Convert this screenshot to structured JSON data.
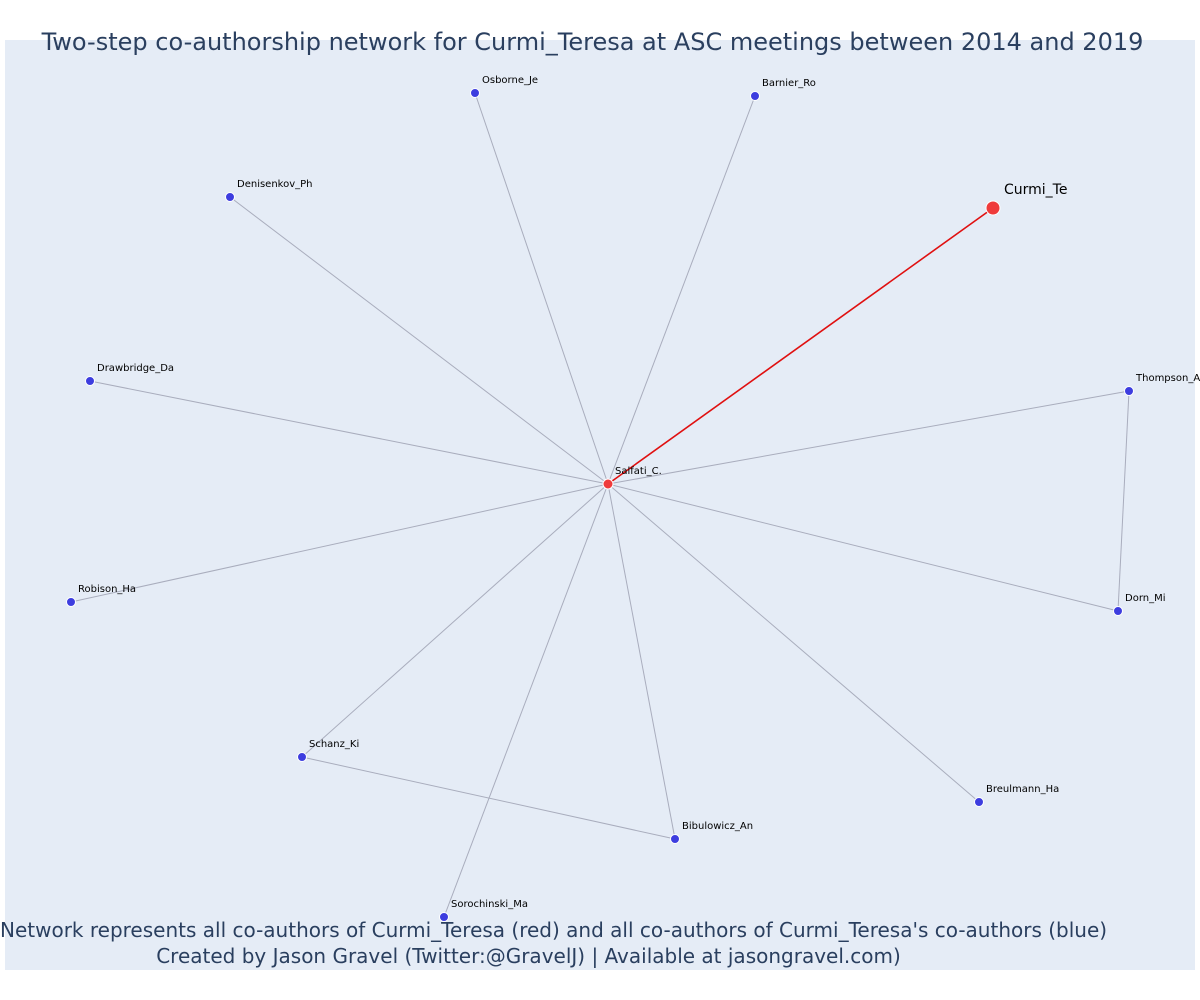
{
  "title": "Two-step co-authorship network for Curmi_Teresa at ASC meetings between 2014 and 2019",
  "caption": {
    "line1": "Network represents all co-authors of Curmi_Teresa (red) and all co-authors of Curmi_Teresa's co-authors (blue)",
    "line2": "Created by Jason Gravel (Twitter:@GravelJ) | Available at jasongravel.com)"
  },
  "colors": {
    "background": "#e5ecf6",
    "red_node": "#ef3b3b",
    "blue_node": "#3d3ddf",
    "red_edge": "#e01010",
    "grey_edge": "#a9adbd"
  },
  "network": {
    "nodes": [
      {
        "id": "Curmi_Te",
        "label": "Curmi_Te",
        "group": "focus"
      },
      {
        "id": "Salfati_C.",
        "label": "Salfati_C.",
        "group": "coauthor"
      },
      {
        "id": "Osborne_Je",
        "label": "Osborne_Je",
        "group": "second"
      },
      {
        "id": "Barnier_Ro",
        "label": "Barnier_Ro",
        "group": "second"
      },
      {
        "id": "Denisenkov_Ph",
        "label": "Denisenkov_Ph",
        "group": "second"
      },
      {
        "id": "Drawbridge_Da",
        "label": "Drawbridge_Da",
        "group": "second"
      },
      {
        "id": "Thompson_A",
        "label": "Thompson_A",
        "group": "second"
      },
      {
        "id": "Robison_Ha",
        "label": "Robison_Ha",
        "group": "second"
      },
      {
        "id": "Dorn_Mi",
        "label": "Dorn_Mi",
        "group": "second"
      },
      {
        "id": "Schanz_Ki",
        "label": "Schanz_Ki",
        "group": "second"
      },
      {
        "id": "Breulmann_Ha",
        "label": "Breulmann_Ha",
        "group": "second"
      },
      {
        "id": "Bibulowicz_An",
        "label": "Bibulowicz_An",
        "group": "second"
      },
      {
        "id": "Sorochinski_Ma",
        "label": "Sorochinski_Ma",
        "group": "second"
      }
    ],
    "edges": [
      {
        "source": "Salfati_C.",
        "target": "Curmi_Te",
        "type": "focus"
      },
      {
        "source": "Salfati_C.",
        "target": "Osborne_Je",
        "type": "second"
      },
      {
        "source": "Salfati_C.",
        "target": "Barnier_Ro",
        "type": "second"
      },
      {
        "source": "Salfati_C.",
        "target": "Denisenkov_Ph",
        "type": "second"
      },
      {
        "source": "Salfati_C.",
        "target": "Drawbridge_Da",
        "type": "second"
      },
      {
        "source": "Salfati_C.",
        "target": "Thompson_A",
        "type": "second"
      },
      {
        "source": "Salfati_C.",
        "target": "Robison_Ha",
        "type": "second"
      },
      {
        "source": "Salfati_C.",
        "target": "Dorn_Mi",
        "type": "second"
      },
      {
        "source": "Salfati_C.",
        "target": "Schanz_Ki",
        "type": "second"
      },
      {
        "source": "Salfati_C.",
        "target": "Breulmann_Ha",
        "type": "second"
      },
      {
        "source": "Salfati_C.",
        "target": "Bibulowicz_An",
        "type": "second"
      },
      {
        "source": "Salfati_C.",
        "target": "Sorochinski_Ma",
        "type": "second"
      },
      {
        "source": "Thompson_A",
        "target": "Dorn_Mi",
        "type": "second"
      },
      {
        "source": "Schanz_Ki",
        "target": "Bibulowicz_An",
        "type": "second"
      }
    ]
  }
}
